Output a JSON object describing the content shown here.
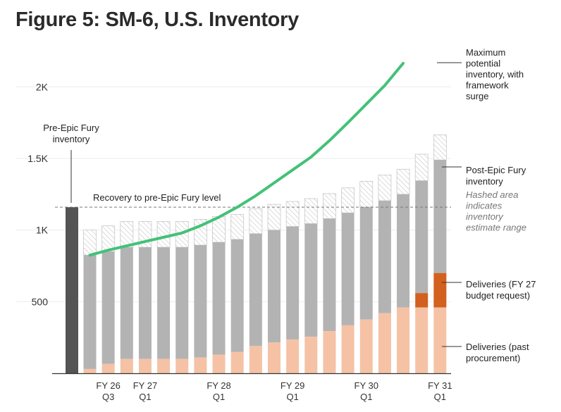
{
  "header": {
    "title": "Figure 5: SM-6, U.S. Inventory"
  },
  "chart_data": {
    "type": "bar",
    "title": "Figure 5: SM-6, U.S. Inventory",
    "xlabel": "",
    "ylabel": "",
    "ylim": [
      0,
      2250
    ],
    "yticks": [
      {
        "value": 500,
        "label": "500"
      },
      {
        "value": 1000,
        "label": "1K"
      },
      {
        "value": 1500,
        "label": "1.5K"
      },
      {
        "value": 2000,
        "label": "2K"
      }
    ],
    "xtick_labels": [
      {
        "index": 1,
        "lines": [
          "FY 26",
          "Q3"
        ]
      },
      {
        "index": 3,
        "lines": [
          "FY 27",
          "Q1"
        ]
      },
      {
        "index": 7,
        "lines": [
          "FY 28",
          "Q1"
        ]
      },
      {
        "index": 11,
        "lines": [
          "FY 29",
          "Q1"
        ]
      },
      {
        "index": 15,
        "lines": [
          "FY 30",
          "Q1"
        ]
      },
      {
        "index": 19,
        "lines": [
          "FY 31",
          "Q1"
        ]
      }
    ],
    "pre_epic_fury_inventory": 1160,
    "reference_line": {
      "value": 1160,
      "label": "Recovery to pre-Epic Fury level"
    },
    "series": [
      {
        "name": "Deliveries (past procurement)",
        "color": "#f5c2a5",
        "values": [
          30,
          65,
          100,
          100,
          100,
          100,
          110,
          130,
          150,
          190,
          215,
          235,
          255,
          295,
          335,
          375,
          420,
          460,
          460,
          460
        ]
      },
      {
        "name": "Deliveries (FY 27 budget request)",
        "color": "#d2601f",
        "values": [
          0,
          0,
          0,
          0,
          0,
          0,
          0,
          0,
          0,
          0,
          0,
          0,
          0,
          0,
          0,
          0,
          0,
          0,
          100,
          240
        ]
      },
      {
        "name": "Post-Epic Fury inventory",
        "color": "#b3b3b3",
        "low_totals": [
          825,
          850,
          880,
          880,
          880,
          880,
          895,
          915,
          935,
          975,
          1000,
          1025,
          1045,
          1080,
          1120,
          1160,
          1205,
          1250,
          1345,
          1490
        ],
        "high_totals": [
          1000,
          1030,
          1060,
          1060,
          1060,
          1060,
          1075,
          1095,
          1110,
          1150,
          1180,
          1200,
          1220,
          1255,
          1295,
          1340,
          1385,
          1425,
          1530,
          1665
        ]
      },
      {
        "name": "Maximum potential inventory, with framework surge",
        "color": "#43c178",
        "values": [
          825,
          860,
          890,
          920,
          950,
          980,
          1030,
          1090,
          1160,
          1240,
          1330,
          1420,
          1510,
          1625,
          1750,
          1880,
          2010,
          2165
        ]
      }
    ],
    "annotations": {
      "pre_epic_fury": [
        "Pre-Epic Fury",
        "inventory"
      ],
      "max_potential": [
        "Maximum",
        "potential",
        "inventory, with",
        "framework",
        "surge"
      ],
      "post_epic_fury": [
        "Post-Epic Fury",
        "inventory"
      ],
      "hashed_area": [
        "Hashed area",
        "indicates",
        "inventory",
        "estimate range"
      ],
      "deliveries_budget": [
        "Deliveries (FY 27",
        "budget request)"
      ],
      "deliveries_past": [
        "Deliveries (past",
        "procurement)"
      ]
    }
  }
}
